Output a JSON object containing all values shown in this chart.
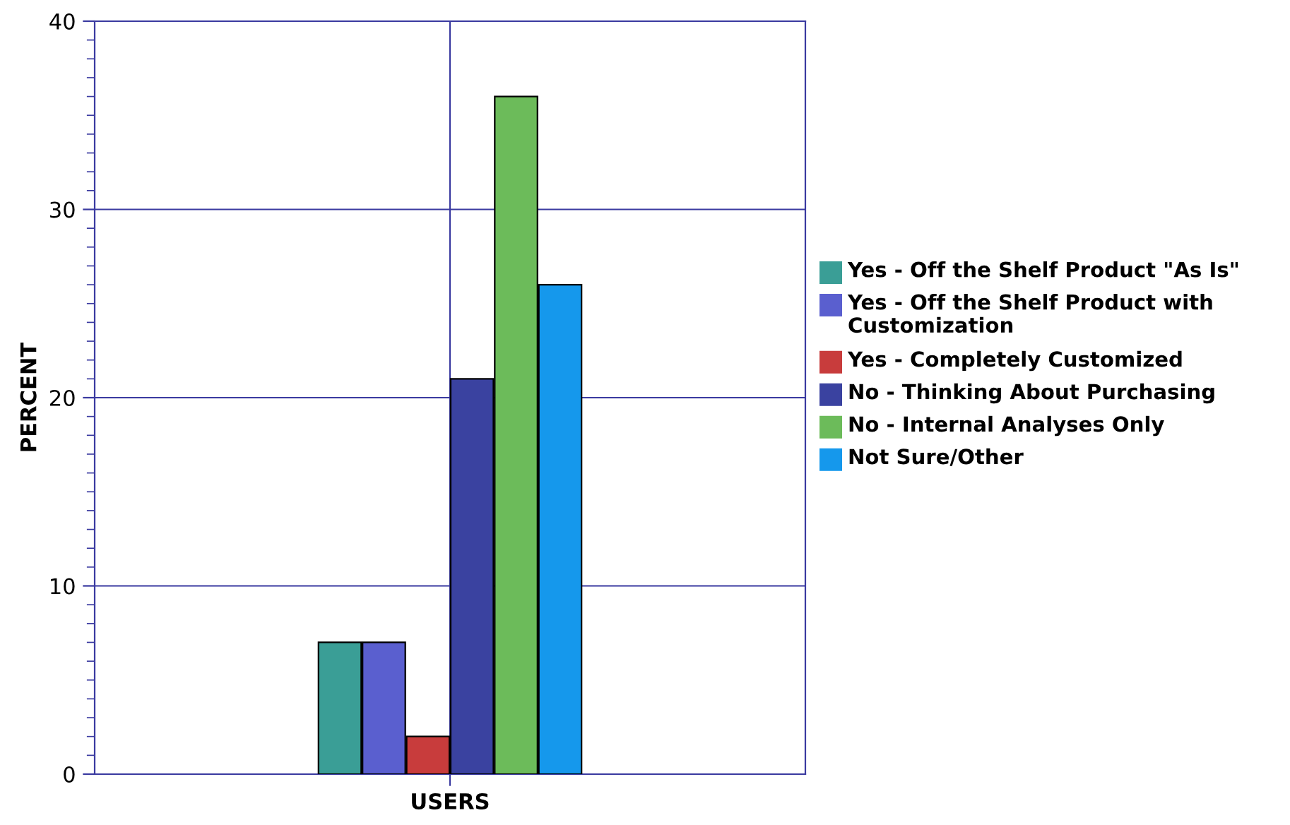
{
  "chart_data": {
    "type": "bar",
    "ylabel": "PERCENT",
    "categories": [
      "USERS"
    ],
    "series": [
      {
        "name": "Yes - Off the Shelf Product \"As Is\"",
        "color": "#3a9e96",
        "values": [
          7
        ]
      },
      {
        "name": "Yes - Off the Shelf Product with Customization",
        "color": "#5a5fcf",
        "values": [
          7
        ]
      },
      {
        "name": "Yes - Completely Customized",
        "color": "#c83c3c",
        "values": [
          2
        ]
      },
      {
        "name": "No - Thinking About Purchasing",
        "color": "#3a42a0",
        "values": [
          21
        ]
      },
      {
        "name": "No - Internal Analyses Only",
        "color": "#6cbb5a",
        "values": [
          36
        ]
      },
      {
        "name": "Not Sure/Other",
        "color": "#1598ec",
        "values": [
          26
        ]
      }
    ],
    "ylim": [
      0,
      40
    ],
    "yticks": [
      0,
      10,
      20,
      30,
      40
    ],
    "grid": true,
    "legend": "right"
  }
}
